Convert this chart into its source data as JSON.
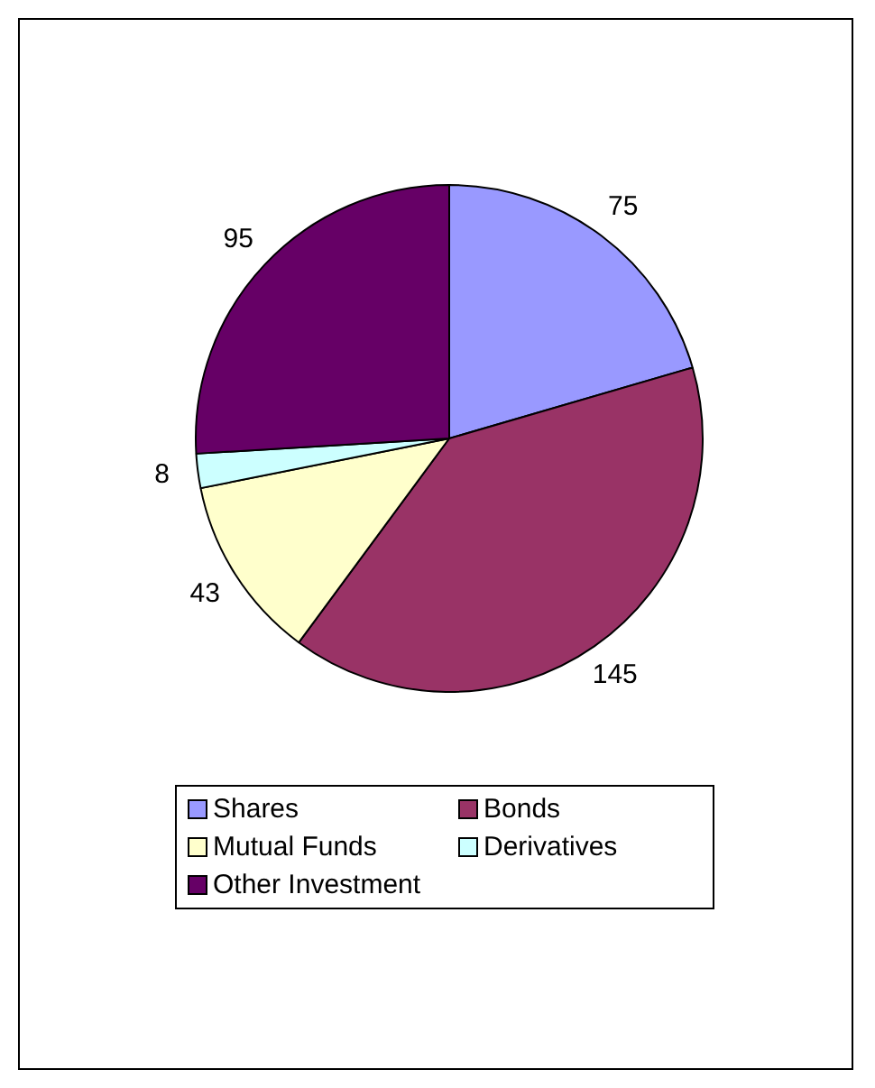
{
  "chart_data": {
    "type": "pie",
    "categories": [
      "Shares",
      "Bonds",
      "Mutual Funds",
      "Derivatives",
      "Other Investment"
    ],
    "values": [
      75,
      145,
      43,
      8,
      95
    ],
    "colors": [
      "#9999ff",
      "#993366",
      "#ffffcc",
      "#ccffff",
      "#660066"
    ],
    "data_labels": true,
    "legend": "bottom"
  }
}
